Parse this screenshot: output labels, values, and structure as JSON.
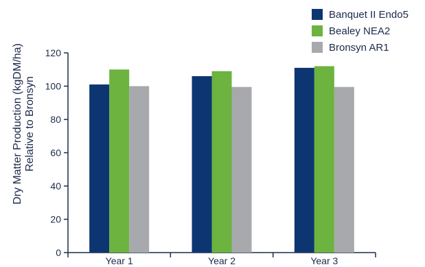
{
  "chart_data": {
    "type": "bar",
    "categories": [
      "Year 1",
      "Year 2",
      "Year 3"
    ],
    "series": [
      {
        "name": "Banquet II Endo5",
        "values": [
          101,
          106,
          111
        ],
        "color": "#0d3571"
      },
      {
        "name": "Bealey NEA2",
        "values": [
          110,
          109,
          112
        ],
        "color": "#6cb33f"
      },
      {
        "name": "Bronsyn AR1",
        "values": [
          100,
          99.5,
          99.5
        ],
        "color": "#a7a9ac"
      }
    ],
    "ylabel_lines": [
      "Dry Matter Production (kgDM/ha)",
      "Relative to Bronsyn"
    ],
    "ylim": [
      0,
      120
    ],
    "yticks": [
      0,
      20,
      40,
      60,
      80,
      100,
      120
    ],
    "grid": false,
    "legend_position": "top-right"
  }
}
